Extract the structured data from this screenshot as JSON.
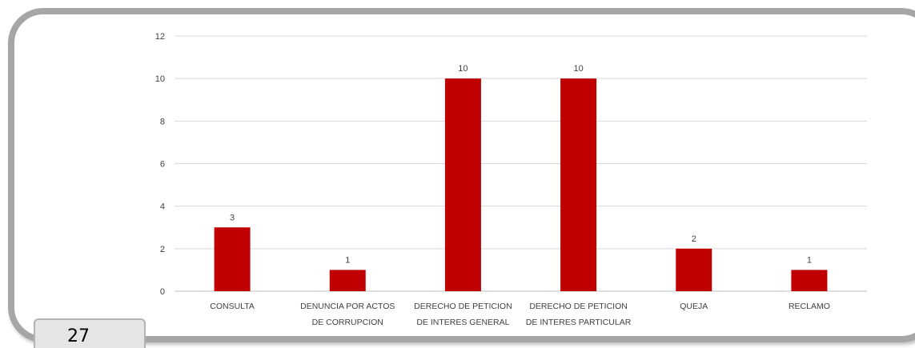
{
  "page": {
    "page_number": "27"
  },
  "chart_data": {
    "type": "bar",
    "categories": [
      [
        "CONSULTA"
      ],
      [
        "DENUNCIA POR ACTOS",
        "DE CORRUPCION"
      ],
      [
        "DERECHO DE PETICION",
        "DE INTERES GENERAL"
      ],
      [
        "DERECHO DE PETICION",
        "DE INTERES PARTICULAR"
      ],
      [
        "QUEJA"
      ],
      [
        "RECLAMO"
      ]
    ],
    "values": [
      3,
      1,
      10,
      10,
      2,
      1
    ],
    "data_labels": [
      "3",
      "1",
      "10",
      "10",
      "2",
      "1"
    ],
    "ylim": [
      0,
      12
    ],
    "yticks": [
      0,
      2,
      4,
      6,
      8,
      10,
      12
    ],
    "ytick_labels": [
      "0",
      "2",
      "4",
      "6",
      "8",
      "10",
      "12"
    ],
    "title": "",
    "xlabel": "",
    "ylabel": "",
    "grid": true,
    "legend": "none",
    "bar_color": "#c00000",
    "grid_color": "#d9d9d9"
  }
}
